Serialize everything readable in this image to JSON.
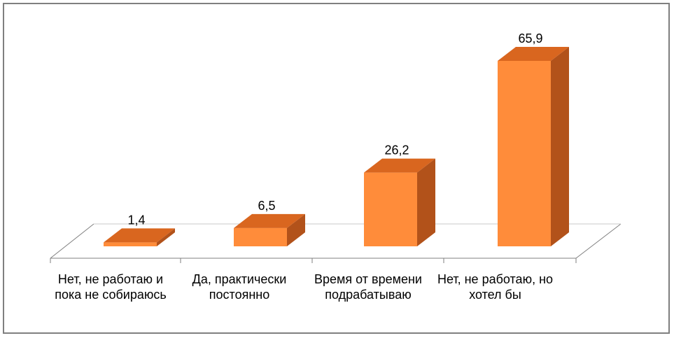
{
  "chart_data": {
    "type": "bar",
    "style": "3d-column",
    "categories": [
      "Нет, не работаю и пока не собираюсь",
      "Да, практически постоянно",
      "Время от времени подрабатываю",
      "Нет, не работаю, но хотел бы"
    ],
    "values": [
      1.4,
      6.5,
      26.2,
      65.9
    ],
    "data_labels": [
      "1,4",
      "6,5",
      "26,2",
      "65,9"
    ],
    "title": "",
    "xlabel": "",
    "ylabel": "",
    "ylim": [
      0,
      70
    ],
    "grid": false,
    "legend": "none"
  },
  "colors": {
    "bar_front": "#ff8c3a",
    "bar_top": "#d9661f",
    "bar_side": "#b2521a",
    "floor_line": "#7f7f7f",
    "frame": "#7f7f7f"
  }
}
